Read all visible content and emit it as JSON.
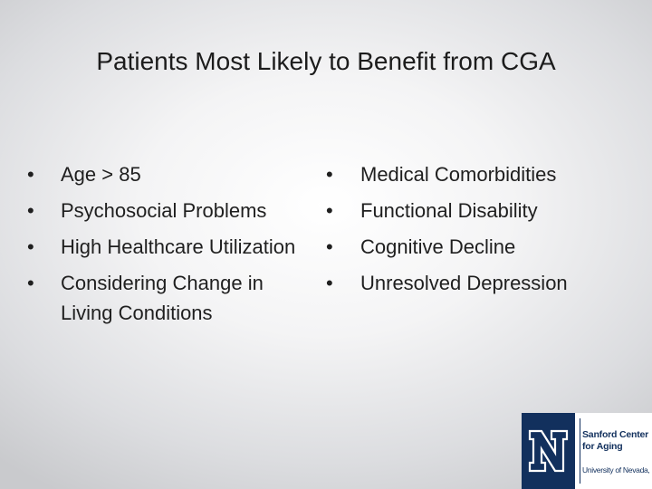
{
  "slide": {
    "title": "Patients Most Likely to Benefit from CGA",
    "bullet_glyph": "•",
    "left_column": [
      "Age > 85",
      "Psychosocial Problems",
      "High Healthcare Utilization",
      "Considering Change in Living Conditions"
    ],
    "right_column": [
      "Medical Comorbidities",
      "Functional Disability",
      "Cognitive Decline",
      "Unresolved Depression"
    ]
  },
  "logo": {
    "mark_letter": "N",
    "line1": "Sanford Center",
    "line2": "for Aging",
    "line3": "University of Nevada, Reno",
    "brand_color": "#12305d"
  }
}
